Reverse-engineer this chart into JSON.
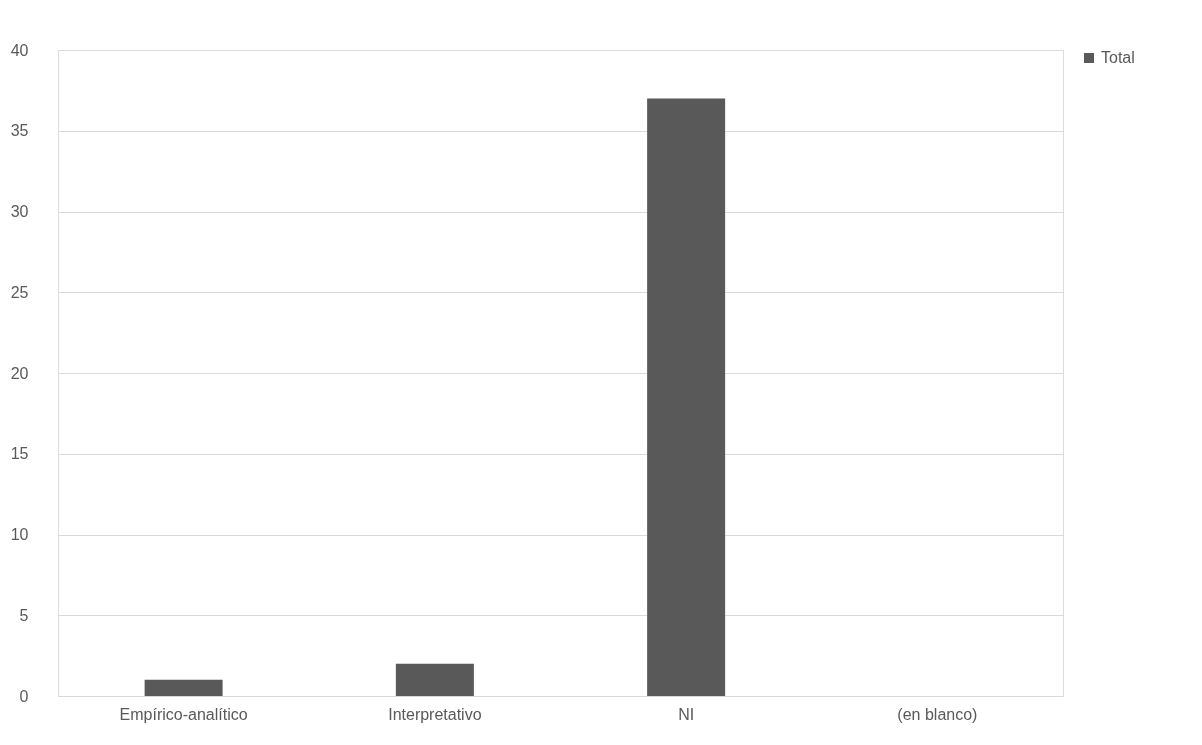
{
  "chart_data": {
    "type": "bar",
    "categories": [
      "Empírico-analítico",
      "Interpretativo",
      "NI",
      "(en blanco)"
    ],
    "series": [
      {
        "name": "Total",
        "color": "#595959",
        "values": [
          1,
          2,
          37,
          null
        ]
      }
    ],
    "ylim": [
      0,
      40
    ],
    "yticks": [
      0,
      5,
      10,
      15,
      20,
      25,
      30,
      35,
      40
    ],
    "grid": "y",
    "legend": "right"
  }
}
